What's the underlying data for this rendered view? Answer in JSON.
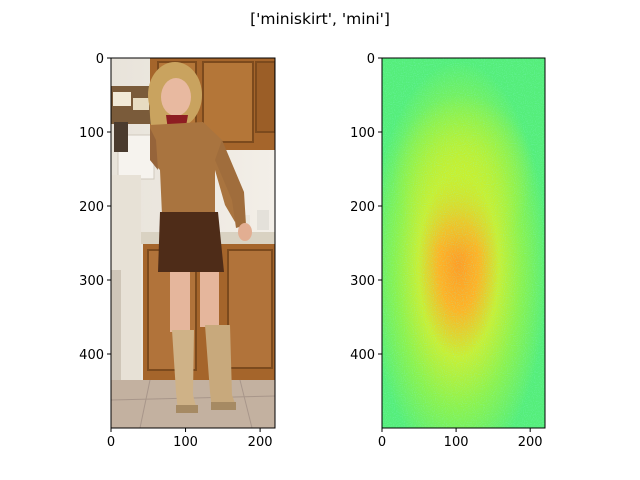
{
  "title": "['miniskirt', 'mini']",
  "chart_data": [
    {
      "type": "image",
      "title": "",
      "image_content": "Photograph: person with long blonde hair wearing a tan sweater, red patterned neck scarf, brown miniskirt and tall beige high-heeled boots, standing in a kitchen with wooden cabinets and a tiled floor",
      "xlim": [
        0,
        220
      ],
      "ylim": [
        500,
        0
      ],
      "xticks": [
        0,
        100,
        200
      ],
      "yticks": [
        0,
        100,
        200,
        300,
        400
      ],
      "colors": {
        "hair": "#c9a35f",
        "sweater": "#a9743f",
        "scarf": "#8e1d22",
        "skirt": "#4e2c18",
        "boots": "#cfb287",
        "cabinet": "#a5652b",
        "wall": "#ece7df",
        "floor": "#c3b1a0"
      }
    },
    {
      "type": "heatmap",
      "title": "",
      "colormap": "jet-like (rainbow)",
      "description": "Noisy saliency-style map: cyan/green near the borders, yellow-green in the middle band, orange peak around the center",
      "peak": {
        "x": 110,
        "y": 280
      },
      "xlim": [
        0,
        220
      ],
      "ylim": [
        500,
        0
      ],
      "xticks": [
        0,
        100,
        200
      ],
      "yticks": [
        0,
        100,
        200,
        300,
        400
      ]
    }
  ]
}
